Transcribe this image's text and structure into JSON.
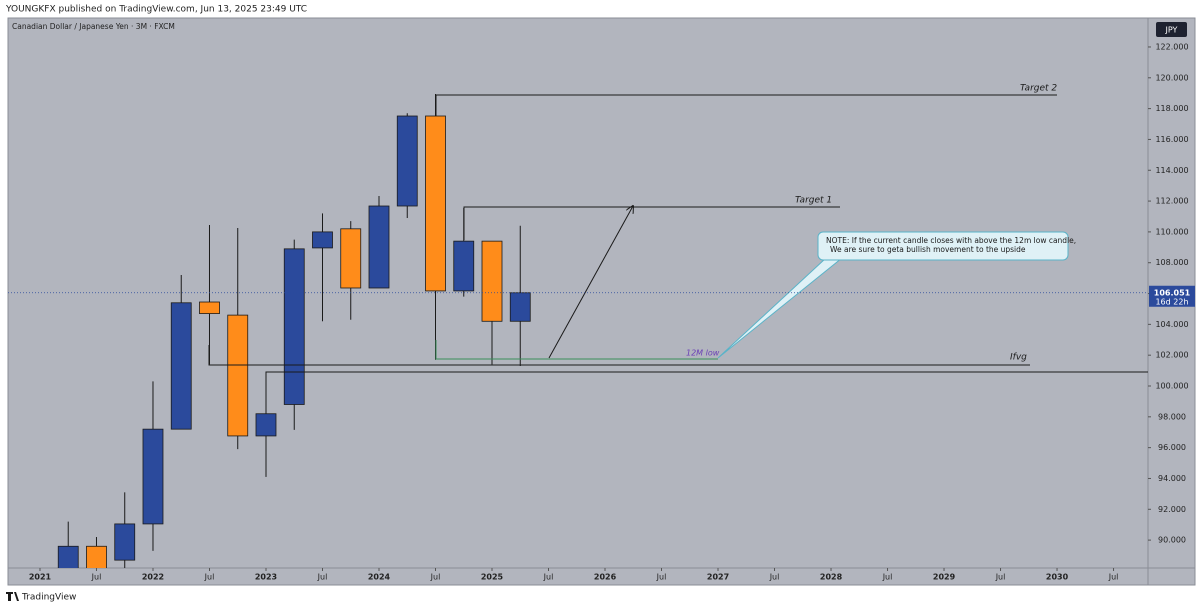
{
  "header": "YOUNGKFX published on TradingView.com, Jun 13, 2025 23:49 UTC",
  "footer": "TradingView",
  "chart_data": {
    "type": "candlestick",
    "title": "Canadian Dollar / Japanese Yen · 3M · FXCM",
    "currency": "JPY",
    "x": [
      2021.25,
      2021.5,
      2021.75,
      2022.0,
      2022.25,
      2022.5,
      2022.75,
      2023.0,
      2023.25,
      2023.5,
      2023.75,
      2024.0,
      2024.25,
      2024.5,
      2024.75,
      2025.0,
      2025.25
    ],
    "open": [
      88.0,
      89.6,
      88.7,
      91.05,
      97.2,
      105.45,
      104.6,
      96.76,
      98.8,
      108.96,
      110.2,
      106.36,
      111.68,
      117.52,
      106.17,
      109.4,
      104.2
    ],
    "high": [
      91.2,
      90.2,
      93.1,
      100.3,
      107.2,
      110.45,
      110.25,
      100.9,
      109.5,
      111.2,
      110.7,
      112.33,
      117.7,
      118.95,
      111.55,
      109.4,
      110.4
    ],
    "low": [
      87.5,
      87.6,
      87.9,
      89.3,
      97.2,
      101.4,
      95.9,
      94.1,
      97.15,
      104.2,
      104.3,
      106.36,
      110.9,
      101.7,
      105.8,
      101.4,
      101.3
    ],
    "close": [
      89.6,
      88.0,
      91.05,
      97.2,
      105.4,
      104.7,
      96.76,
      98.2,
      108.9,
      110.0,
      106.36,
      111.68,
      117.52,
      106.17,
      109.4,
      104.2,
      106.05
    ],
    "up_color": "#2b4a9c",
    "down_color": "#ff8c1a",
    "xlim": [
      2020.717,
      2030.805
    ],
    "xticks": [
      {
        "value": 2021,
        "label": "2021"
      },
      {
        "value": 2021.5,
        "label": "Jul"
      },
      {
        "value": 2022,
        "label": "2022"
      },
      {
        "value": 2022.5,
        "label": "Jul"
      },
      {
        "value": 2023,
        "label": "2023"
      },
      {
        "value": 2023.5,
        "label": "Jul"
      },
      {
        "value": 2024,
        "label": "2024"
      },
      {
        "value": 2024.5,
        "label": "Jul"
      },
      {
        "value": 2025,
        "label": "2025"
      },
      {
        "value": 2025.5,
        "label": "Jul"
      },
      {
        "value": 2026,
        "label": "2026"
      },
      {
        "value": 2026.5,
        "label": "Jul"
      },
      {
        "value": 2027,
        "label": "2027"
      },
      {
        "value": 2027.5,
        "label": "Jul"
      },
      {
        "value": 2028,
        "label": "2028"
      },
      {
        "value": 2028.5,
        "label": "Jul"
      },
      {
        "value": 2029,
        "label": "2029"
      },
      {
        "value": 2029.5,
        "label": "Jul"
      },
      {
        "value": 2030,
        "label": "2030"
      },
      {
        "value": 2030.5,
        "label": "Jul"
      }
    ],
    "ylim": [
      88.19,
      123.88
    ],
    "yticks": [
      {
        "value": 90,
        "label": "90.000"
      },
      {
        "value": 92,
        "label": "92.000"
      },
      {
        "value": 94,
        "label": "94.000"
      },
      {
        "value": 96,
        "label": "96.000"
      },
      {
        "value": 98,
        "label": "98.000"
      },
      {
        "value": 100,
        "label": "100.000"
      },
      {
        "value": 102,
        "label": "102.000"
      },
      {
        "value": 104,
        "label": "104.000"
      },
      {
        "value": 106,
        "label": "106.000"
      },
      {
        "value": 108,
        "label": "108.000"
      },
      {
        "value": 110,
        "label": "110.000"
      },
      {
        "value": 112,
        "label": "112.000"
      },
      {
        "value": 114,
        "label": "114.000"
      },
      {
        "value": 116,
        "label": "116.000"
      },
      {
        "value": 118,
        "label": "118.000"
      },
      {
        "value": 120,
        "label": "120.000"
      },
      {
        "value": 122,
        "label": "122.000"
      }
    ],
    "last_price": {
      "value": 106.051,
      "label": "106.051"
    },
    "countdown": "16d 22h",
    "annotations": {
      "target_2": "Target 2",
      "target_1": "Target 1",
      "ifvg": "Ifvg",
      "low_12m": "12M low",
      "note": [
        "NOTE: If the current candle closes with above the 12m low candle,",
        "We are sure to geta bullish movement to the upside"
      ]
    }
  }
}
